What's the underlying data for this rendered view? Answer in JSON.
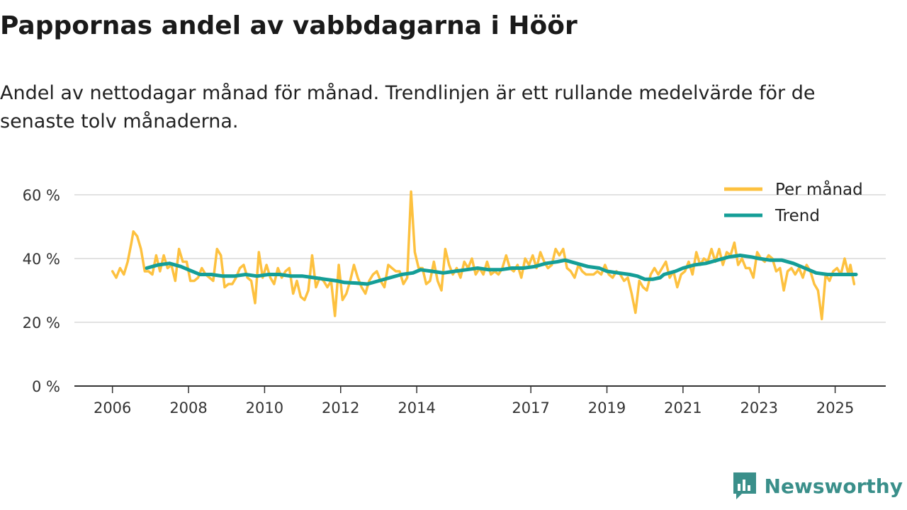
{
  "chart_data": {
    "type": "line",
    "title": "Pappornas andel av vabbdagarna i Höör",
    "subtitle": "Andel av nettodagar månad för månad. Trendlinjen är ett rullande medelvärde för de senaste tolv månaderna.",
    "xlabel": "",
    "ylabel": "",
    "ylim": [
      0,
      70
    ],
    "yticks": [
      0,
      20,
      40,
      60
    ],
    "ytick_labels": [
      "0 %",
      "20 %",
      "40 %",
      "60 %"
    ],
    "xlim": [
      2005.0,
      2026.33
    ],
    "xticks": [
      2006,
      2008,
      2010,
      2012,
      2014,
      2017,
      2019,
      2021,
      2023,
      2025
    ],
    "xtick_labels": [
      "2006",
      "2008",
      "2010",
      "2012",
      "2014",
      "2017",
      "2019",
      "2021",
      "2023",
      "2025"
    ],
    "grid": "horizontal",
    "legend": "top-right",
    "series": [
      {
        "name": "Per månad",
        "color": "#fdc13f",
        "points": [
          [
            2006.0,
            36
          ],
          [
            2006.1,
            34
          ],
          [
            2006.2,
            37
          ],
          [
            2006.3,
            35
          ],
          [
            2006.4,
            39
          ],
          [
            2006.5,
            45
          ],
          [
            2006.55,
            48.5
          ],
          [
            2006.65,
            47
          ],
          [
            2006.75,
            43
          ],
          [
            2006.85,
            36
          ],
          [
            2006.95,
            36
          ],
          [
            2007.05,
            35
          ],
          [
            2007.15,
            41
          ],
          [
            2007.25,
            36
          ],
          [
            2007.35,
            41
          ],
          [
            2007.45,
            37
          ],
          [
            2007.55,
            38
          ],
          [
            2007.65,
            33
          ],
          [
            2007.75,
            43
          ],
          [
            2007.85,
            39
          ],
          [
            2007.95,
            39
          ],
          [
            2008.05,
            33
          ],
          [
            2008.15,
            33
          ],
          [
            2008.25,
            34
          ],
          [
            2008.35,
            37
          ],
          [
            2008.45,
            35
          ],
          [
            2008.55,
            34
          ],
          [
            2008.65,
            33
          ],
          [
            2008.75,
            43
          ],
          [
            2008.85,
            41
          ],
          [
            2008.95,
            31
          ],
          [
            2009.05,
            32
          ],
          [
            2009.15,
            32
          ],
          [
            2009.25,
            34
          ],
          [
            2009.35,
            37
          ],
          [
            2009.45,
            38
          ],
          [
            2009.55,
            34
          ],
          [
            2009.65,
            33
          ],
          [
            2009.75,
            26
          ],
          [
            2009.85,
            42
          ],
          [
            2009.95,
            34
          ],
          [
            2010.05,
            38
          ],
          [
            2010.15,
            34
          ],
          [
            2010.25,
            32
          ],
          [
            2010.35,
            37
          ],
          [
            2010.45,
            34
          ],
          [
            2010.55,
            36
          ],
          [
            2010.65,
            37
          ],
          [
            2010.75,
            29
          ],
          [
            2010.85,
            33
          ],
          [
            2010.95,
            28
          ],
          [
            2011.05,
            27
          ],
          [
            2011.15,
            30
          ],
          [
            2011.25,
            41
          ],
          [
            2011.35,
            31
          ],
          [
            2011.45,
            34
          ],
          [
            2011.55,
            33
          ],
          [
            2011.65,
            31
          ],
          [
            2011.75,
            33
          ],
          [
            2011.85,
            22
          ],
          [
            2011.95,
            38
          ],
          [
            2012.05,
            27
          ],
          [
            2012.15,
            29
          ],
          [
            2012.25,
            33
          ],
          [
            2012.35,
            38
          ],
          [
            2012.45,
            34
          ],
          [
            2012.55,
            31
          ],
          [
            2012.65,
            29
          ],
          [
            2012.75,
            33
          ],
          [
            2012.85,
            35
          ],
          [
            2012.95,
            36
          ],
          [
            2013.05,
            33
          ],
          [
            2013.15,
            31
          ],
          [
            2013.25,
            38
          ],
          [
            2013.35,
            37
          ],
          [
            2013.45,
            36
          ],
          [
            2013.55,
            36
          ],
          [
            2013.65,
            32
          ],
          [
            2013.75,
            34
          ],
          [
            2013.85,
            61
          ],
          [
            2013.95,
            42
          ],
          [
            2014.05,
            37
          ],
          [
            2014.15,
            37
          ],
          [
            2014.25,
            32
          ],
          [
            2014.35,
            33
          ],
          [
            2014.45,
            39
          ],
          [
            2014.55,
            33
          ],
          [
            2014.65,
            30
          ],
          [
            2014.75,
            43
          ],
          [
            2014.85,
            38
          ],
          [
            2014.95,
            35
          ],
          [
            2015.05,
            37
          ],
          [
            2015.15,
            34
          ],
          [
            2015.25,
            39
          ],
          [
            2015.35,
            37
          ],
          [
            2015.45,
            40
          ],
          [
            2015.55,
            35
          ],
          [
            2015.65,
            37
          ],
          [
            2015.75,
            35
          ],
          [
            2015.85,
            39
          ],
          [
            2015.95,
            35
          ],
          [
            2016.05,
            36
          ],
          [
            2016.15,
            35
          ],
          [
            2016.25,
            37
          ],
          [
            2016.35,
            41
          ],
          [
            2016.45,
            37
          ],
          [
            2016.55,
            36
          ],
          [
            2016.65,
            38
          ],
          [
            2016.75,
            34
          ],
          [
            2016.85,
            40
          ],
          [
            2016.95,
            38
          ],
          [
            2017.05,
            41
          ],
          [
            2017.15,
            37
          ],
          [
            2017.25,
            42
          ],
          [
            2017.35,
            39
          ],
          [
            2017.45,
            37
          ],
          [
            2017.55,
            38
          ],
          [
            2017.65,
            43
          ],
          [
            2017.75,
            41
          ],
          [
            2017.85,
            43
          ],
          [
            2017.95,
            37
          ],
          [
            2018.05,
            36
          ],
          [
            2018.15,
            34
          ],
          [
            2018.25,
            38
          ],
          [
            2018.35,
            36
          ],
          [
            2018.45,
            35
          ],
          [
            2018.55,
            35
          ],
          [
            2018.65,
            35
          ],
          [
            2018.75,
            36
          ],
          [
            2018.85,
            35
          ],
          [
            2018.95,
            38
          ],
          [
            2019.05,
            35
          ],
          [
            2019.15,
            34
          ],
          [
            2019.25,
            36
          ],
          [
            2019.35,
            35
          ],
          [
            2019.45,
            33
          ],
          [
            2019.55,
            34
          ],
          [
            2019.65,
            29
          ],
          [
            2019.75,
            23
          ],
          [
            2019.85,
            33
          ],
          [
            2019.95,
            31
          ],
          [
            2020.05,
            30
          ],
          [
            2020.15,
            35
          ],
          [
            2020.25,
            37
          ],
          [
            2020.35,
            35
          ],
          [
            2020.45,
            37
          ],
          [
            2020.55,
            39
          ],
          [
            2020.65,
            34
          ],
          [
            2020.75,
            36
          ],
          [
            2020.85,
            31
          ],
          [
            2020.95,
            35
          ],
          [
            2021.05,
            36
          ],
          [
            2021.15,
            39
          ],
          [
            2021.25,
            35
          ],
          [
            2021.35,
            42
          ],
          [
            2021.45,
            38
          ],
          [
            2021.55,
            40
          ],
          [
            2021.65,
            39
          ],
          [
            2021.75,
            43
          ],
          [
            2021.85,
            39
          ],
          [
            2021.95,
            43
          ],
          [
            2022.05,
            38
          ],
          [
            2022.15,
            42
          ],
          [
            2022.25,
            41
          ],
          [
            2022.35,
            45
          ],
          [
            2022.45,
            38
          ],
          [
            2022.55,
            40
          ],
          [
            2022.65,
            37
          ],
          [
            2022.75,
            37
          ],
          [
            2022.85,
            34
          ],
          [
            2022.95,
            42
          ],
          [
            2023.05,
            40
          ],
          [
            2023.15,
            39
          ],
          [
            2023.25,
            41
          ],
          [
            2023.35,
            40
          ],
          [
            2023.45,
            36
          ],
          [
            2023.55,
            37
          ],
          [
            2023.65,
            30
          ],
          [
            2023.75,
            36
          ],
          [
            2023.85,
            37
          ],
          [
            2023.95,
            35
          ],
          [
            2024.05,
            37
          ],
          [
            2024.15,
            34
          ],
          [
            2024.25,
            38
          ],
          [
            2024.35,
            36
          ],
          [
            2024.45,
            32
          ],
          [
            2024.55,
            30
          ],
          [
            2024.65,
            21
          ],
          [
            2024.75,
            35
          ],
          [
            2024.85,
            33
          ],
          [
            2024.95,
            36
          ],
          [
            2025.05,
            37
          ],
          [
            2025.15,
            35
          ],
          [
            2025.25,
            40
          ],
          [
            2025.35,
            35
          ],
          [
            2025.4,
            38
          ],
          [
            2025.5,
            32
          ]
        ]
      },
      {
        "name": "Trend",
        "color": "#149e97",
        "points": [
          [
            2006.9,
            37
          ],
          [
            2007.2,
            38
          ],
          [
            2007.5,
            38.5
          ],
          [
            2007.8,
            37.5
          ],
          [
            2008.0,
            36.5
          ],
          [
            2008.3,
            35
          ],
          [
            2008.6,
            35
          ],
          [
            2008.9,
            34.5
          ],
          [
            2009.2,
            34.5
          ],
          [
            2009.5,
            35
          ],
          [
            2009.8,
            34.5
          ],
          [
            2010.1,
            35
          ],
          [
            2010.4,
            35
          ],
          [
            2010.7,
            34.5
          ],
          [
            2011.0,
            34.5
          ],
          [
            2011.3,
            34
          ],
          [
            2011.6,
            33.5
          ],
          [
            2011.9,
            33
          ],
          [
            2012.1,
            32.5
          ],
          [
            2012.4,
            32.3
          ],
          [
            2012.7,
            32
          ],
          [
            2013.0,
            33
          ],
          [
            2013.3,
            34
          ],
          [
            2013.6,
            35
          ],
          [
            2013.9,
            35.5
          ],
          [
            2014.1,
            36.5
          ],
          [
            2014.4,
            36
          ],
          [
            2014.7,
            35.5
          ],
          [
            2015.0,
            36
          ],
          [
            2015.3,
            36.5
          ],
          [
            2015.6,
            37
          ],
          [
            2015.9,
            36.5
          ],
          [
            2016.2,
            36.5
          ],
          [
            2016.5,
            37
          ],
          [
            2016.8,
            37
          ],
          [
            2017.1,
            37.5
          ],
          [
            2017.4,
            38.5
          ],
          [
            2017.7,
            39
          ],
          [
            2017.9,
            39.5
          ],
          [
            2018.2,
            38.5
          ],
          [
            2018.5,
            37.5
          ],
          [
            2018.8,
            37
          ],
          [
            2019.0,
            36
          ],
          [
            2019.3,
            35.5
          ],
          [
            2019.6,
            35
          ],
          [
            2019.8,
            34.5
          ],
          [
            2020.0,
            33.5
          ],
          [
            2020.2,
            33.5
          ],
          [
            2020.4,
            34
          ],
          [
            2020.5,
            35
          ],
          [
            2020.8,
            36
          ],
          [
            2021.0,
            37
          ],
          [
            2021.3,
            38
          ],
          [
            2021.6,
            38.5
          ],
          [
            2021.9,
            39.5
          ],
          [
            2022.2,
            40.5
          ],
          [
            2022.5,
            41
          ],
          [
            2022.8,
            40.5
          ],
          [
            2023.0,
            40
          ],
          [
            2023.3,
            39.5
          ],
          [
            2023.6,
            39.5
          ],
          [
            2023.9,
            38.5
          ],
          [
            2024.2,
            37
          ],
          [
            2024.5,
            35.5
          ],
          [
            2024.8,
            35
          ],
          [
            2025.1,
            35
          ],
          [
            2025.4,
            35
          ],
          [
            2025.55,
            35
          ]
        ]
      }
    ]
  },
  "brand": {
    "name": "Newsworthy",
    "color": "#3a8f8a"
  }
}
